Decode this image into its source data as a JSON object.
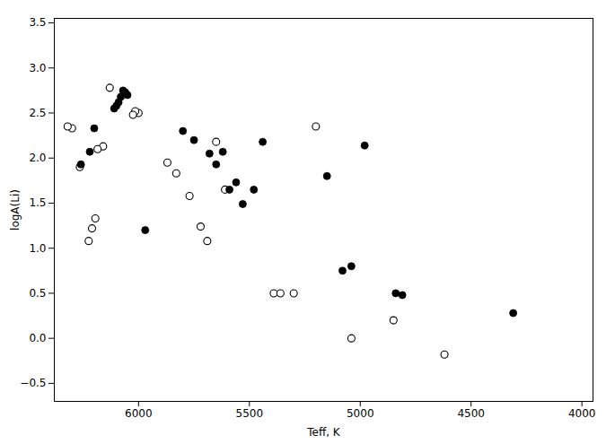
{
  "chart_data": {
    "type": "scatter",
    "xlabel": "Teff, K",
    "ylabel": "logA(Li)",
    "xlim": [
      6380,
      3950
    ],
    "ylim": [
      -0.7,
      3.55
    ],
    "xticks": [
      6000,
      5500,
      5000,
      4500,
      4000
    ],
    "yticks": [
      {
        "value": -0.5,
        "label": "−0.5"
      },
      {
        "value": 0.0,
        "label": "0.0"
      },
      0.5,
      {
        "value": 1.0,
        "label": "1.0"
      },
      1.5,
      {
        "value": 2.0,
        "label": "2.0"
      },
      2.5,
      {
        "value": 3.0,
        "label": "3.0"
      },
      3.5
    ],
    "series": [
      {
        "marker": "open circle",
        "color": "black",
        "x": [
          6000,
          6015,
          6025,
          6130,
          6160,
          6185,
          6195,
          6210,
          6225,
          6265,
          6300,
          6320,
          5870,
          5830,
          5770,
          5720,
          5690,
          5650,
          5610,
          5390,
          5360,
          5200,
          5300,
          5040,
          4850,
          4620
        ],
        "y": [
          2.5,
          2.52,
          2.48,
          2.78,
          2.13,
          2.1,
          1.33,
          1.22,
          1.08,
          1.9,
          2.33,
          2.35,
          1.95,
          1.83,
          1.58,
          1.24,
          1.08,
          2.18,
          1.65,
          0.5,
          0.5,
          2.35,
          0.5,
          0.0,
          0.2,
          -0.18
        ]
      },
      {
        "marker": "filled circle",
        "color": "black",
        "x": [
          6050,
          6060,
          6070,
          6080,
          6090,
          6100,
          6110,
          5970,
          6200,
          6220,
          6260,
          5800,
          5750,
          5680,
          5650,
          5620,
          5590,
          5560,
          5530,
          5480,
          5440,
          5150,
          5080,
          5040,
          4980,
          4840,
          4810,
          4310
        ],
        "y": [
          2.7,
          2.73,
          2.75,
          2.68,
          2.62,
          2.58,
          2.55,
          1.2,
          2.33,
          2.07,
          1.93,
          2.3,
          2.2,
          2.05,
          1.93,
          2.07,
          1.65,
          1.73,
          1.49,
          1.65,
          2.18,
          1.8,
          0.75,
          0.8,
          2.14,
          0.5,
          0.48,
          0.28
        ]
      }
    ]
  }
}
